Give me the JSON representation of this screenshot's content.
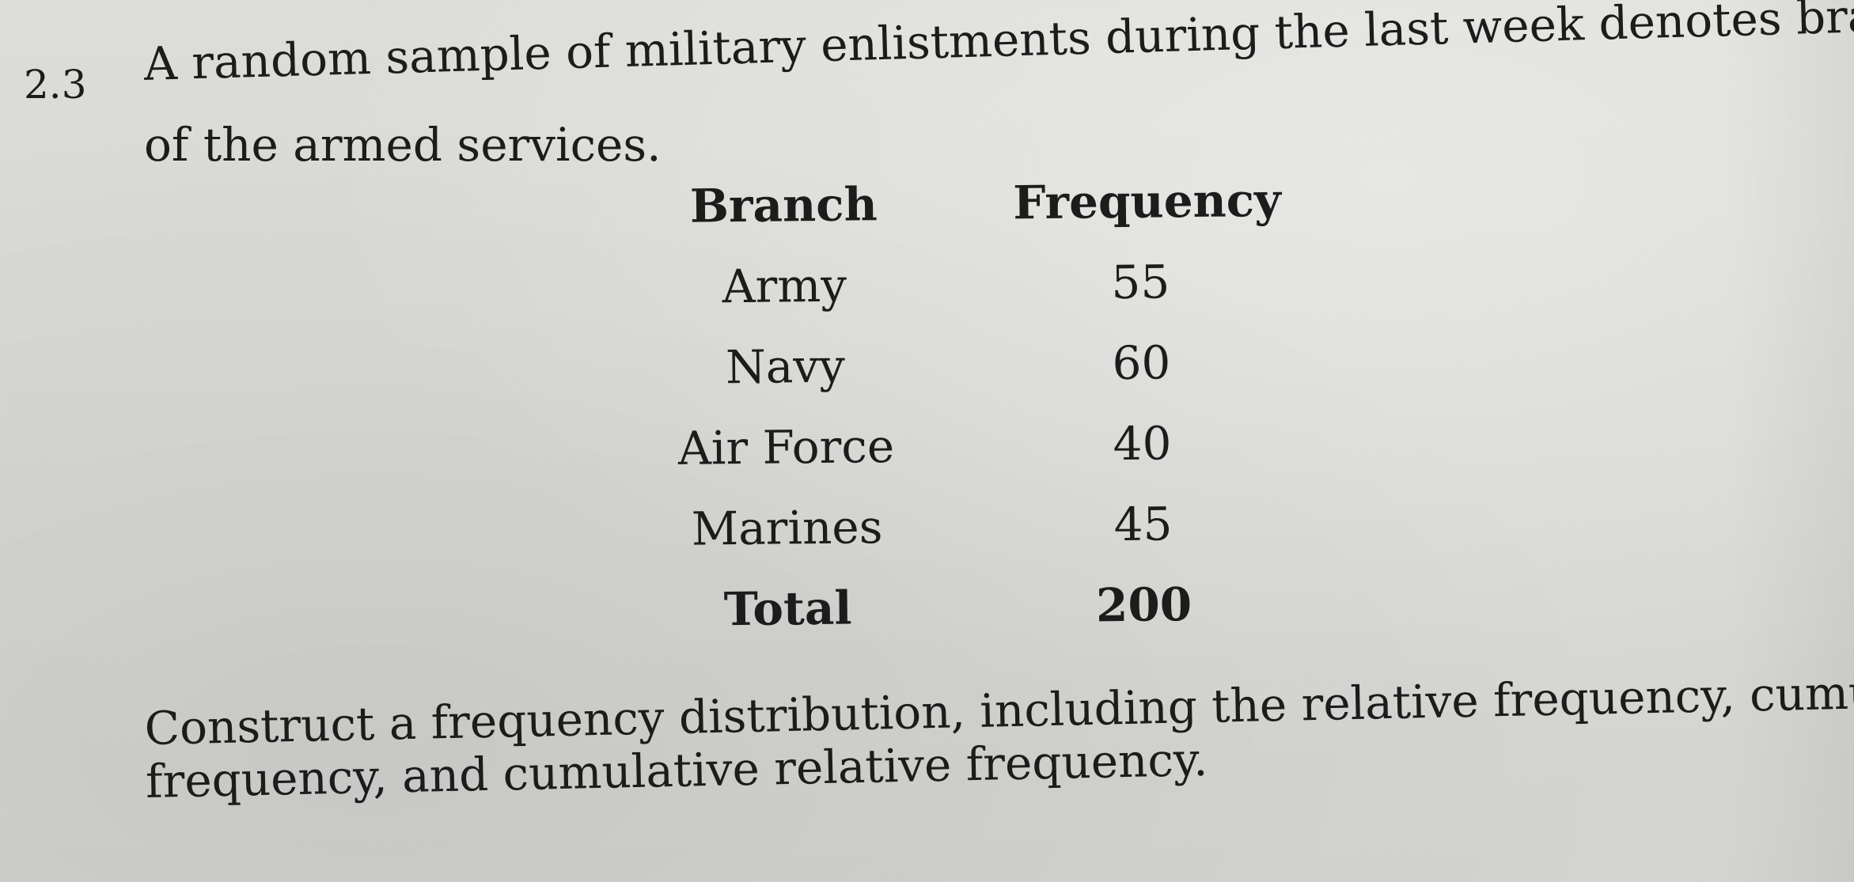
{
  "problem": {
    "number": "2.3",
    "intro_line1": "A random sample of military enlistments during the last week denotes branches",
    "intro_line2": "of the armed services."
  },
  "table": {
    "headers": {
      "branch": "Branch",
      "frequency": "Frequency"
    },
    "rows": [
      {
        "branch": "Army",
        "frequency": "55"
      },
      {
        "branch": "Navy",
        "frequency": "60"
      },
      {
        "branch": "Air Force",
        "frequency": "40"
      },
      {
        "branch": "Marines",
        "frequency": "45"
      }
    ],
    "total": {
      "label": "Total",
      "frequency": "200"
    }
  },
  "instruction": {
    "line1": "Construct a frequency distribution, including the relative frequency, cumulative",
    "line2": "frequency, and cumulative relative frequency."
  }
}
